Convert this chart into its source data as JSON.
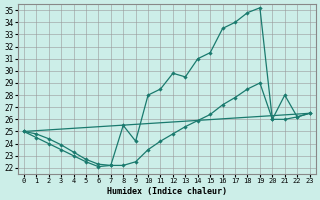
{
  "xlabel": "Humidex (Indice chaleur)",
  "background_color": "#cceee8",
  "line_color": "#1a7a6e",
  "xlim": [
    -0.5,
    23.5
  ],
  "ylim": [
    21.5,
    35.5
  ],
  "xticks": [
    0,
    1,
    2,
    3,
    4,
    5,
    6,
    7,
    8,
    9,
    10,
    11,
    12,
    13,
    14,
    15,
    16,
    17,
    18,
    19,
    20,
    21,
    22,
    23
  ],
  "yticks": [
    22,
    23,
    24,
    25,
    26,
    27,
    28,
    29,
    30,
    31,
    32,
    33,
    34,
    35
  ],
  "line1_x": [
    0,
    1,
    2,
    3,
    4,
    5,
    6,
    7,
    8,
    9,
    10,
    11,
    12,
    13,
    14,
    15,
    16,
    17,
    18,
    19,
    20,
    21,
    22,
    23
  ],
  "line1_y": [
    25.0,
    24.5,
    24.0,
    23.5,
    23.0,
    22.5,
    22.1,
    22.2,
    25.5,
    24.2,
    28.0,
    28.5,
    29.8,
    29.5,
    31.0,
    31.5,
    33.5,
    34.0,
    34.8,
    35.2,
    26.0,
    28.0,
    26.2,
    26.5
  ],
  "line2_x": [
    0,
    1,
    2,
    3,
    4,
    5,
    6,
    7,
    8,
    9,
    10,
    11,
    12,
    13,
    14,
    15,
    16,
    17,
    18,
    19,
    20,
    21,
    22,
    23
  ],
  "line2_y": [
    25.0,
    24.8,
    24.4,
    23.9,
    23.3,
    22.7,
    22.3,
    22.2,
    22.2,
    22.5,
    23.5,
    24.2,
    24.8,
    25.4,
    25.9,
    26.4,
    27.2,
    27.8,
    28.5,
    29.0,
    26.0,
    26.0,
    26.2,
    26.5
  ],
  "line3_x": [
    0,
    23
  ],
  "line3_y": [
    25.0,
    26.5
  ]
}
